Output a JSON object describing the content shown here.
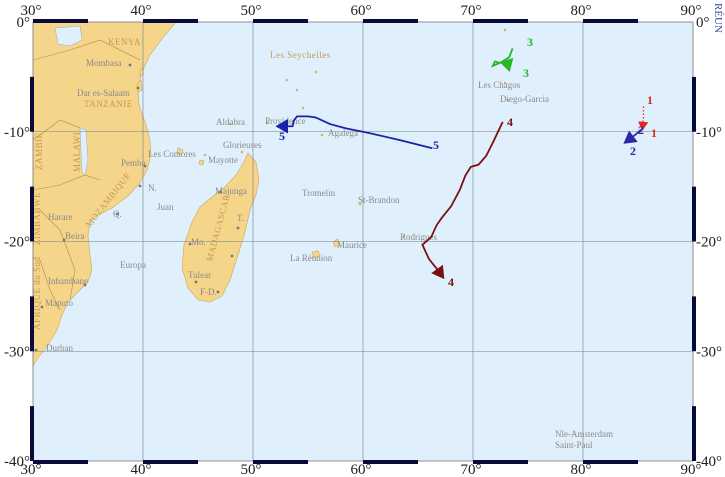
{
  "map": {
    "colors": {
      "ocean": "#dff0fc",
      "land": "#f5d58a",
      "grid": "#6f7f8c",
      "frame": "#0a0a3a",
      "place_text": "#8a8a8a",
      "country_text": "#c49a52"
    },
    "lon_ticks": [
      "30°",
      "40°",
      "50°",
      "60°",
      "70°",
      "80°",
      "90°"
    ],
    "lat_ticks": [
      "0°",
      "-10°",
      "-20°",
      "-30°",
      "-40°"
    ],
    "lon_range": [
      30,
      90
    ],
    "lat_range": [
      -40,
      0
    ],
    "grid_step_deg": 5,
    "watermark": "RÉUN",
    "countries": [
      "KENYA",
      "TANZANIE",
      "ZAMBIE",
      "MALAWI",
      "MOZAMBIQUE",
      "ZIMBABWE",
      "MADAGASCAR",
      "AFRIQUE du Sud",
      "Les Seychelles"
    ],
    "places": [
      "Mombasa",
      "Dar es-Salaam",
      "Pemba",
      "N.",
      "Aldabra",
      "Providence",
      "Glorieuses",
      "Les Comores",
      "Mayotte",
      "Majunga",
      "Juan",
      "T.",
      "Harare",
      "Beira",
      "Q.",
      "Mo.",
      "Europa",
      "Tulear",
      "F-D.",
      "Inhambane",
      "Maputo",
      "Durban",
      "Tromelin",
      "St-Brandon",
      "Agalega",
      "Maurice",
      "La Réunion",
      "Rodrigues",
      "Les Chagos",
      "Diego-Garcia",
      "Nle-Amsterdam",
      "Saint-Paul"
    ],
    "tracks": [
      {
        "id": "1",
        "color": "#e0281e",
        "style": "dotted",
        "points": [
          [
            85.5,
            -7.7
          ],
          [
            85.5,
            -8.8
          ],
          [
            85.4,
            -9.8
          ]
        ]
      },
      {
        "id": "2",
        "color": "#2a2aa8",
        "style": "solid",
        "points": [
          [
            85.3,
            -9.8
          ],
          [
            84.6,
            -10.4
          ],
          [
            83.8,
            -11.0
          ]
        ]
      },
      {
        "id": "3",
        "color": "#2bb52b",
        "style": "solid",
        "points": [
          [
            73.6,
            -2.4
          ],
          [
            73.3,
            -3.2
          ],
          [
            72.5,
            -3.7
          ],
          [
            71.8,
            -4.0
          ],
          [
            72.0,
            -3.6
          ],
          [
            72.3,
            -3.7
          ],
          [
            72.7,
            -3.7
          ],
          [
            73.1,
            -3.7
          ],
          [
            73.3,
            -4.4
          ]
        ]
      },
      {
        "id": "4",
        "color": "#7a1010",
        "style": "solid",
        "points": [
          [
            72.7,
            -9.1
          ],
          [
            71.9,
            -10.8
          ],
          [
            71.2,
            -12.2
          ],
          [
            70.5,
            -13.0
          ],
          [
            69.8,
            -13.2
          ],
          [
            69.3,
            -14.0
          ],
          [
            68.8,
            -15.3
          ],
          [
            68.0,
            -16.8
          ],
          [
            67.2,
            -17.8
          ],
          [
            66.7,
            -18.5
          ],
          [
            66.2,
            -19.6
          ],
          [
            65.4,
            -20.3
          ],
          [
            66.0,
            -21.6
          ],
          [
            66.8,
            -22.6
          ],
          [
            67.3,
            -23.3
          ]
        ]
      },
      {
        "id": "5",
        "color": "#1a22a8",
        "style": "solid",
        "points": [
          [
            66.3,
            -11.5
          ],
          [
            63.5,
            -10.8
          ],
          [
            60.5,
            -10.1
          ],
          [
            58.5,
            -9.7
          ],
          [
            57.0,
            -9.3
          ],
          [
            55.7,
            -8.7
          ],
          [
            55.0,
            -8.6
          ],
          [
            54.0,
            -8.6
          ],
          [
            53.7,
            -9.0
          ],
          [
            53.6,
            -9.5
          ],
          [
            53.0,
            -9.5
          ],
          [
            52.2,
            -9.5
          ]
        ]
      }
    ]
  }
}
